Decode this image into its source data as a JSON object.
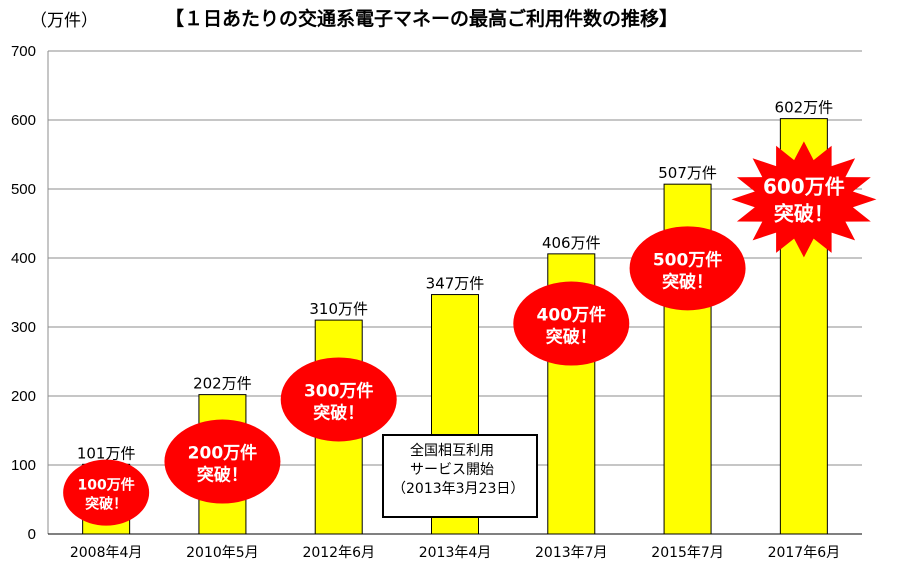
{
  "unit_label": "（万件）",
  "title": "【１日あたりの交通系電子マネーの最高ご利用件数の推移】",
  "note": {
    "line1": "全国相互利用",
    "line2": "サービス開始",
    "line3": "（2013年3月23日）"
  },
  "chart_data": {
    "type": "bar",
    "title": "【１日あたりの交通系電子マネーの最高ご利用件数の推移】",
    "ylabel": "（万件）",
    "xlabel": "",
    "ylim": [
      0,
      700
    ],
    "yticks": [
      0,
      100,
      200,
      300,
      400,
      500,
      600,
      700
    ],
    "grid": true,
    "categories": [
      "2008年4月",
      "2010年5月",
      "2012年6月",
      "2013年4月",
      "2013年7月",
      "2015年7月",
      "2017年6月"
    ],
    "values": [
      101,
      202,
      310,
      347,
      406,
      507,
      602
    ],
    "data_labels": [
      "101万件",
      "202万件",
      "310万件",
      "347万件",
      "406万件",
      "507万件",
      "602万件"
    ],
    "bar_color": "#ffff00",
    "annotations": [
      {
        "category": "2008年4月",
        "line1": "100万件",
        "line2": "突破！",
        "y": 60
      },
      {
        "category": "2010年5月",
        "line1": "200万件",
        "line2": "突破！",
        "y": 105
      },
      {
        "category": "2012年6月",
        "line1": "300万件",
        "line2": "突破！",
        "y": 195
      },
      {
        "category": "2013年7月",
        "line1": "400万件",
        "line2": "突破！",
        "y": 305
      },
      {
        "category": "2015年7月",
        "line1": "500万件",
        "line2": "突破！",
        "y": 385
      },
      {
        "category": "2017年6月",
        "line1": "600万件",
        "line2": "突破！",
        "y": 485,
        "shape": "starburst"
      }
    ],
    "annotation_color": "#ff0000"
  }
}
